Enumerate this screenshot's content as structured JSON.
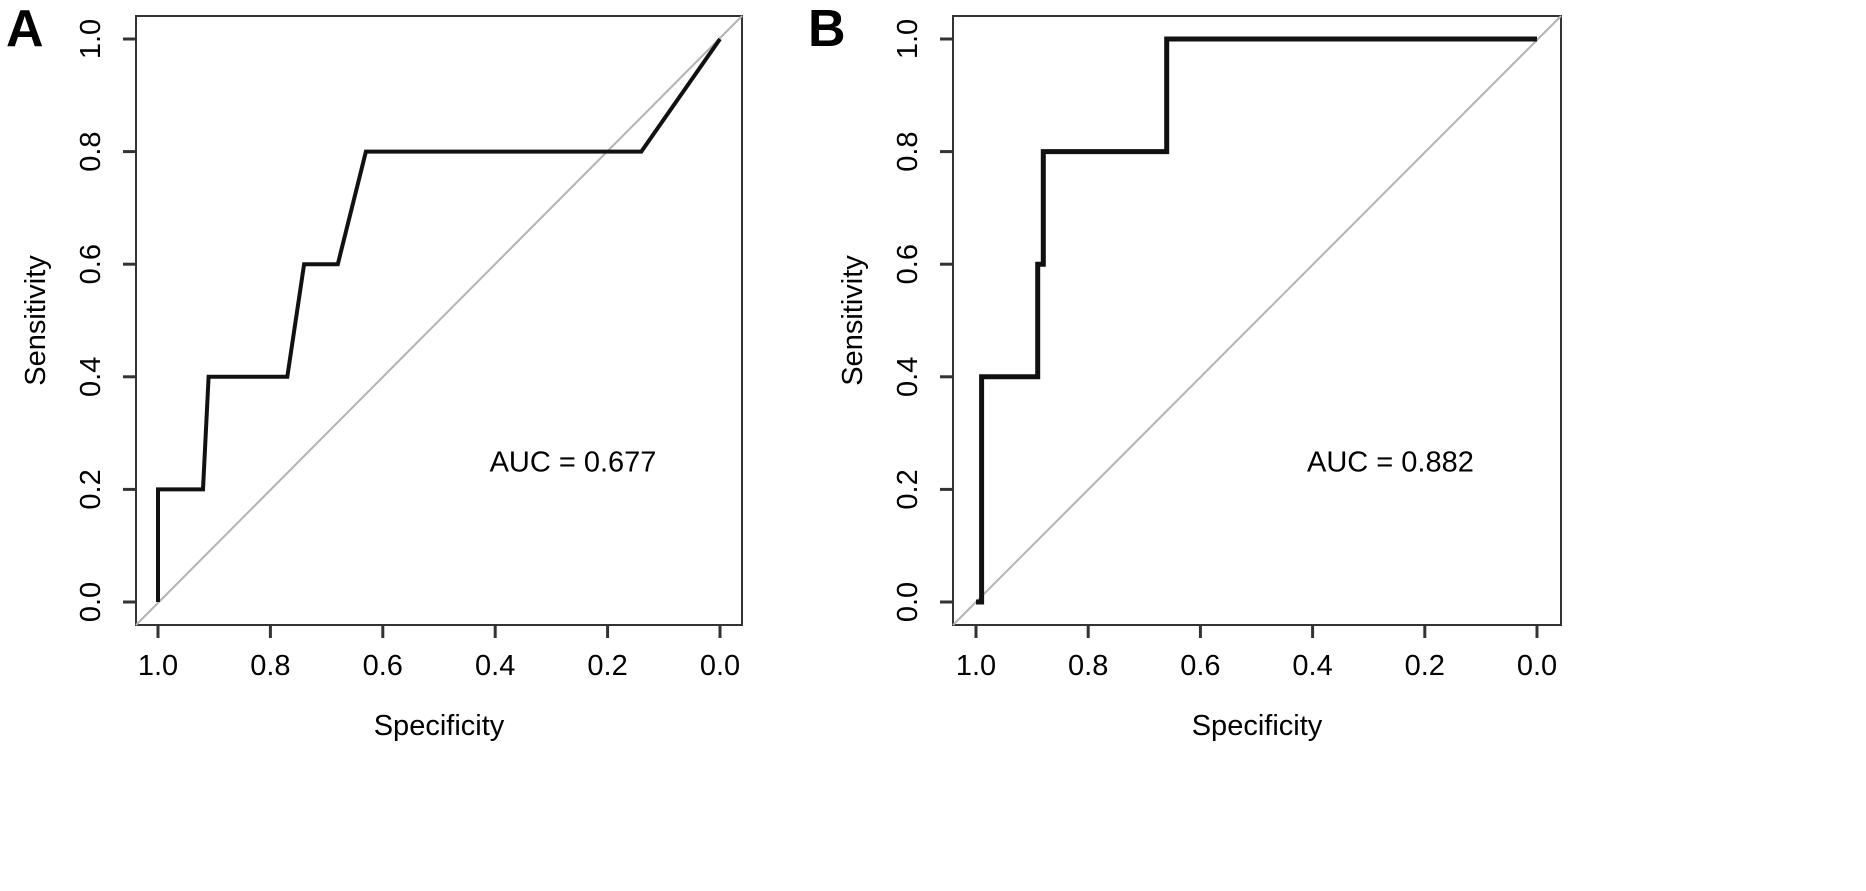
{
  "chart_data": [
    {
      "type": "line",
      "panel_label": "A",
      "xlabel": "Specificity",
      "ylabel": "Sensitivity",
      "xlim": [
        1.0,
        0.0
      ],
      "ylim": [
        0.0,
        1.0
      ],
      "x_reversed": true,
      "x_ticks": [
        "1.0",
        "0.8",
        "0.6",
        "0.4",
        "0.2",
        "0.0"
      ],
      "y_ticks": [
        "0.0",
        "0.2",
        "0.4",
        "0.6",
        "0.8",
        "1.0"
      ],
      "annotation": "AUC = 0.677",
      "annotation_pos": {
        "specificity": 0.41,
        "sensitivity": 0.25
      },
      "diagonal": true,
      "grid": false,
      "series": [
        {
          "points": [
            {
              "specificity": 1.0,
              "sensitivity": 0.0
            },
            {
              "specificity": 1.0,
              "sensitivity": 0.2
            },
            {
              "specificity": 0.92,
              "sensitivity": 0.2
            },
            {
              "specificity": 0.91,
              "sensitivity": 0.4
            },
            {
              "specificity": 0.77,
              "sensitivity": 0.4
            },
            {
              "specificity": 0.74,
              "sensitivity": 0.6
            },
            {
              "specificity": 0.68,
              "sensitivity": 0.6
            },
            {
              "specificity": 0.63,
              "sensitivity": 0.8
            },
            {
              "specificity": 0.14,
              "sensitivity": 0.8
            },
            {
              "specificity": 0.0,
              "sensitivity": 1.0
            }
          ]
        }
      ]
    },
    {
      "type": "line",
      "panel_label": "B",
      "xlabel": "Specificity",
      "ylabel": "Sensitivity",
      "xlim": [
        1.0,
        0.0
      ],
      "ylim": [
        0.0,
        1.0
      ],
      "x_reversed": true,
      "x_ticks": [
        "1.0",
        "0.8",
        "0.6",
        "0.4",
        "0.2",
        "0.0"
      ],
      "y_ticks": [
        "0.0",
        "0.2",
        "0.4",
        "0.6",
        "0.8",
        "1.0"
      ],
      "annotation": "AUC = 0.882",
      "annotation_pos": {
        "specificity": 0.41,
        "sensitivity": 0.25
      },
      "diagonal": true,
      "grid": false,
      "series": [
        {
          "points": [
            {
              "specificity": 1.0,
              "sensitivity": 0.0
            },
            {
              "specificity": 0.99,
              "sensitivity": 0.0
            },
            {
              "specificity": 0.99,
              "sensitivity": 0.4
            },
            {
              "specificity": 0.89,
              "sensitivity": 0.4
            },
            {
              "specificity": 0.89,
              "sensitivity": 0.6
            },
            {
              "specificity": 0.88,
              "sensitivity": 0.6
            },
            {
              "specificity": 0.88,
              "sensitivity": 0.8
            },
            {
              "specificity": 0.66,
              "sensitivity": 0.8
            },
            {
              "specificity": 0.66,
              "sensitivity": 1.0
            },
            {
              "specificity": 0.0,
              "sensitivity": 1.0
            }
          ]
        }
      ]
    }
  ]
}
